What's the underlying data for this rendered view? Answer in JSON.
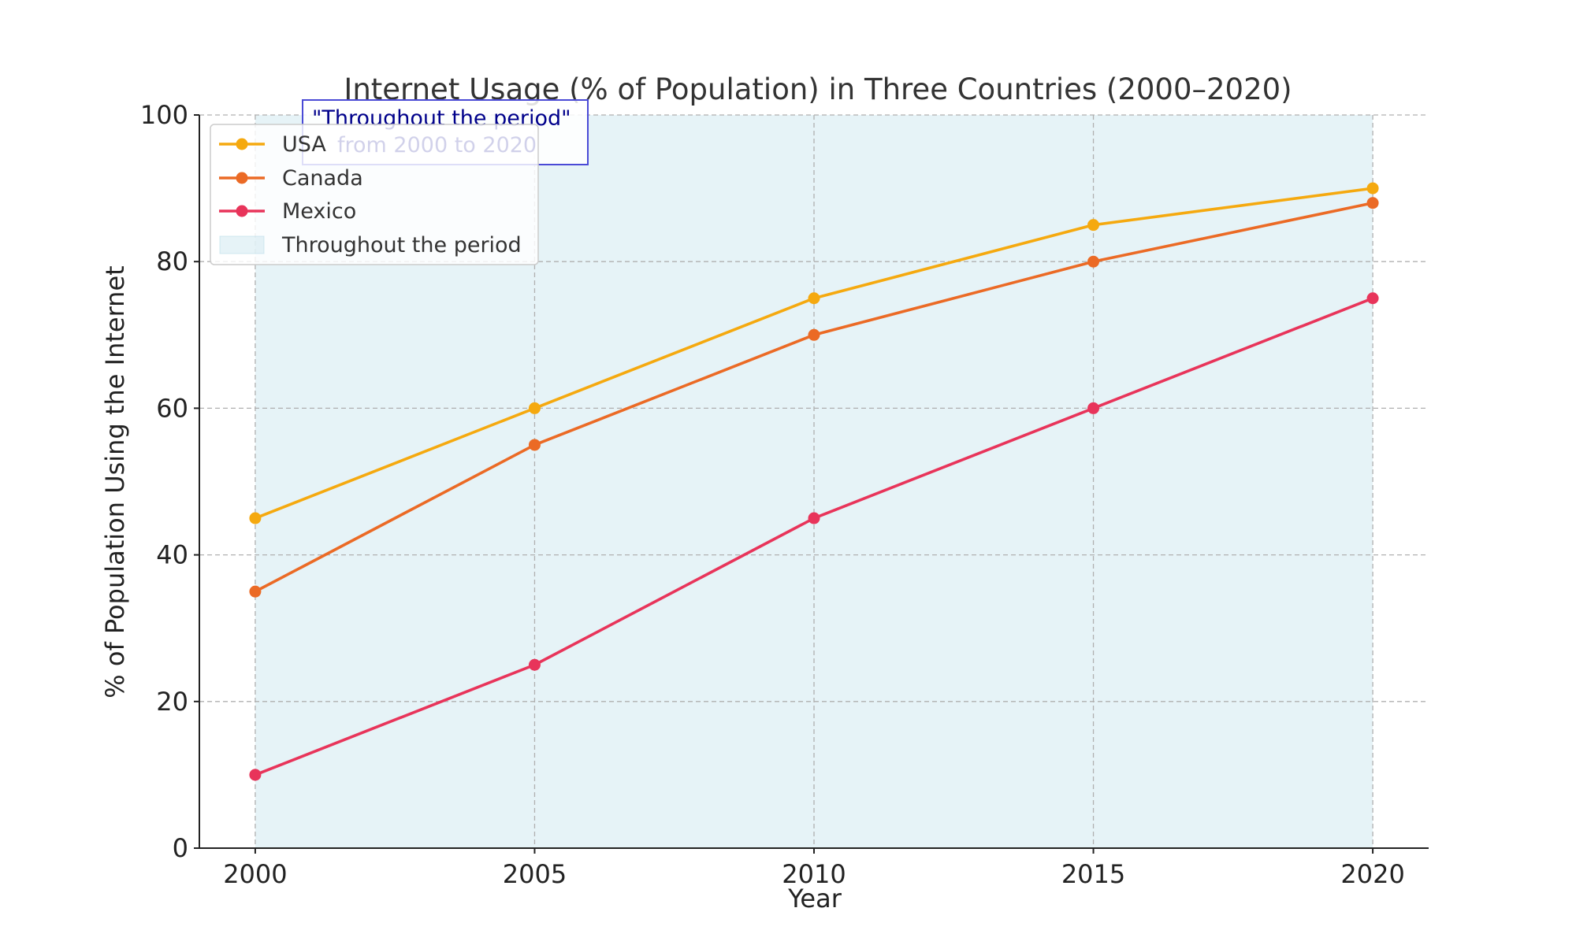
{
  "chart_data": {
    "type": "line",
    "title": "Internet Usage (% of Population) in Three Countries (2000–2020)",
    "xlabel": "Year",
    "ylabel": "% of Population Using the Internet",
    "x": [
      2000,
      2005,
      2010,
      2015,
      2020
    ],
    "x_ticks": [
      "2000",
      "2005",
      "2010",
      "2015",
      "2020"
    ],
    "y_ticks": [
      "0",
      "20",
      "40",
      "60",
      "80",
      "100"
    ],
    "xlim": [
      1999,
      2021
    ],
    "ylim": [
      0,
      100
    ],
    "grid": true,
    "legend_position": "top-left",
    "series": [
      {
        "name": "USA",
        "color": "#f5a90f",
        "values": [
          45,
          60,
          75,
          85,
          90
        ]
      },
      {
        "name": "Canada",
        "color": "#eb6a25",
        "values": [
          35,
          55,
          70,
          80,
          88
        ]
      },
      {
        "name": "Mexico",
        "color": "#e8345a",
        "values": [
          10,
          25,
          45,
          60,
          75
        ]
      }
    ],
    "shaded_region": {
      "label": "Throughout the period",
      "x_start": 2000,
      "x_end": 2020,
      "color": "#add8e6"
    },
    "annotation": {
      "line1": "\"Throughout the period\"",
      "line2": "from 2000 to 2020",
      "x": 2001,
      "y": 96
    }
  }
}
